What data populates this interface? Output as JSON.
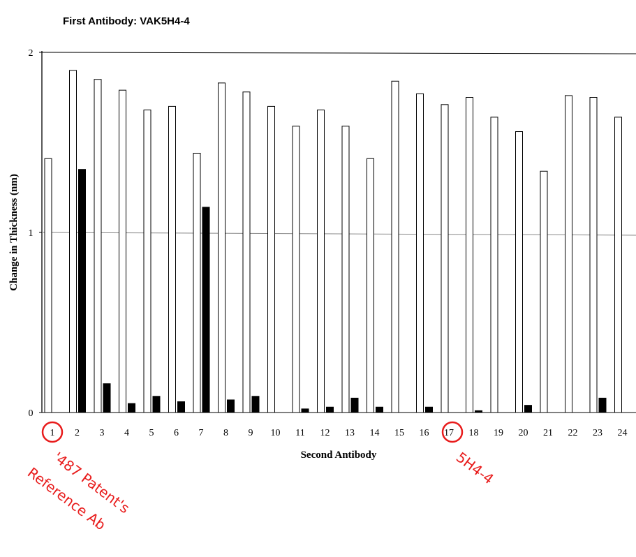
{
  "chart_data": {
    "type": "bar",
    "title": "First Antibody:  VAK5H4-4",
    "xlabel": "Second Antibody",
    "ylabel": "Change in Thickness (nm)",
    "ylim": [
      0,
      2
    ],
    "y_ticks": [
      "0",
      "1",
      "2"
    ],
    "categories": [
      "1",
      "2",
      "3",
      "4",
      "5",
      "6",
      "7",
      "8",
      "9",
      "10",
      "11",
      "12",
      "13",
      "14",
      "15",
      "16",
      "17",
      "18",
      "19",
      "20",
      "21",
      "22",
      "23",
      "24"
    ],
    "series": [
      {
        "values": [
          1.41,
          1.9,
          1.85,
          1.79,
          1.68,
          1.7,
          1.44,
          1.83,
          1.78,
          1.7,
          1.59,
          1.68,
          1.59,
          1.41,
          1.84,
          1.77,
          1.71,
          1.75,
          1.64,
          1.56,
          1.34,
          1.76,
          1.75,
          1.64
        ],
        "fill": "#ffffff"
      },
      {
        "values": [
          0.0,
          1.35,
          0.16,
          0.05,
          0.09,
          0.06,
          1.14,
          0.07,
          0.09,
          0.0,
          0.02,
          0.03,
          0.08,
          0.03,
          0.0,
          0.03,
          0.0,
          0.01,
          0.0,
          0.04,
          0.0,
          0.0,
          0.08,
          0.0
        ],
        "fill": "#000000"
      }
    ],
    "grid": false,
    "reference_line_y": 1
  },
  "annotations": {
    "highlighted_categories": [
      "1",
      "17"
    ],
    "label_1": [
      "'487 Patent's",
      "Reference Ab"
    ],
    "label_17": "5H4-4",
    "color": "#e81c1c"
  }
}
